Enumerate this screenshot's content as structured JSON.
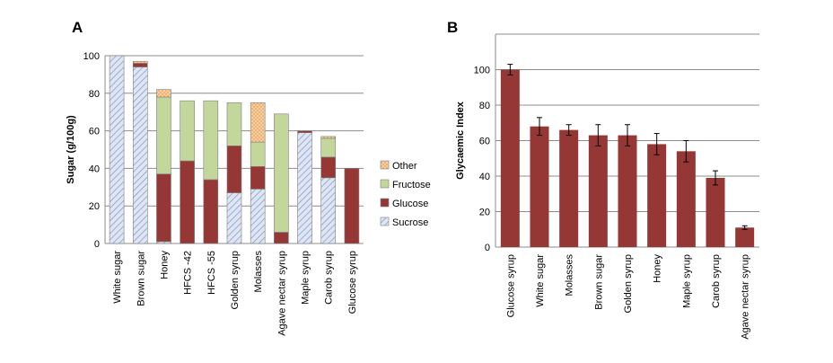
{
  "chart_data": [
    {
      "type": "bar",
      "stacked": true,
      "panel_label": "A",
      "ylabel": "Sugar (g/100g)",
      "ylim": [
        0,
        100
      ],
      "yticks": [
        0,
        20,
        40,
        60,
        80,
        100
      ],
      "grid": true,
      "legend_position": "right",
      "categories": [
        "White sugar",
        "Brown sugar",
        "Honey",
        "HFCS -42",
        "HFCS -55",
        "Golden syrup",
        "Molasses",
        "Agave nectar syrup",
        "Maple syrup",
        "Carob syrup",
        "Glucose syrup"
      ],
      "series": [
        {
          "name": "Sucrose",
          "color": "#c8d3ea",
          "pattern": "hatch",
          "values": [
            100,
            94,
            1,
            0,
            0,
            27,
            29,
            0,
            59,
            35,
            0
          ]
        },
        {
          "name": "Glucose",
          "color": "#953735",
          "values": [
            0,
            2,
            36,
            44,
            34,
            25,
            12,
            6,
            1,
            11,
            40
          ]
        },
        {
          "name": "Fructose",
          "color": "#c3d69b",
          "values": [
            0,
            0,
            41,
            32,
            42,
            23,
            13,
            63,
            0,
            10,
            0
          ]
        },
        {
          "name": "Other",
          "color": "#f5c28e",
          "pattern": "dots",
          "values": [
            0,
            1,
            4,
            0,
            0,
            0,
            21,
            0,
            0,
            1,
            0
          ]
        }
      ],
      "legend_order": [
        "Other",
        "Fructose",
        "Glucose",
        "Sucrose"
      ]
    },
    {
      "type": "bar",
      "panel_label": "B",
      "ylabel": "Glycaemic Index",
      "ylim": [
        0,
        120
      ],
      "yticks": [
        0,
        20,
        40,
        60,
        80,
        100
      ],
      "grid": true,
      "color": "#953735",
      "categories": [
        "Glucose syrup",
        "White sugar",
        "Molasses",
        "Brown sugar",
        "Golden syrup",
        "Honey",
        "Maple syrup",
        "Carob syrup",
        "Agave nectar syrup"
      ],
      "values": [
        100,
        68,
        66,
        63,
        63,
        58,
        54,
        39,
        11
      ],
      "error": [
        3,
        5,
        3,
        6,
        6,
        6,
        6,
        4,
        1
      ]
    }
  ]
}
